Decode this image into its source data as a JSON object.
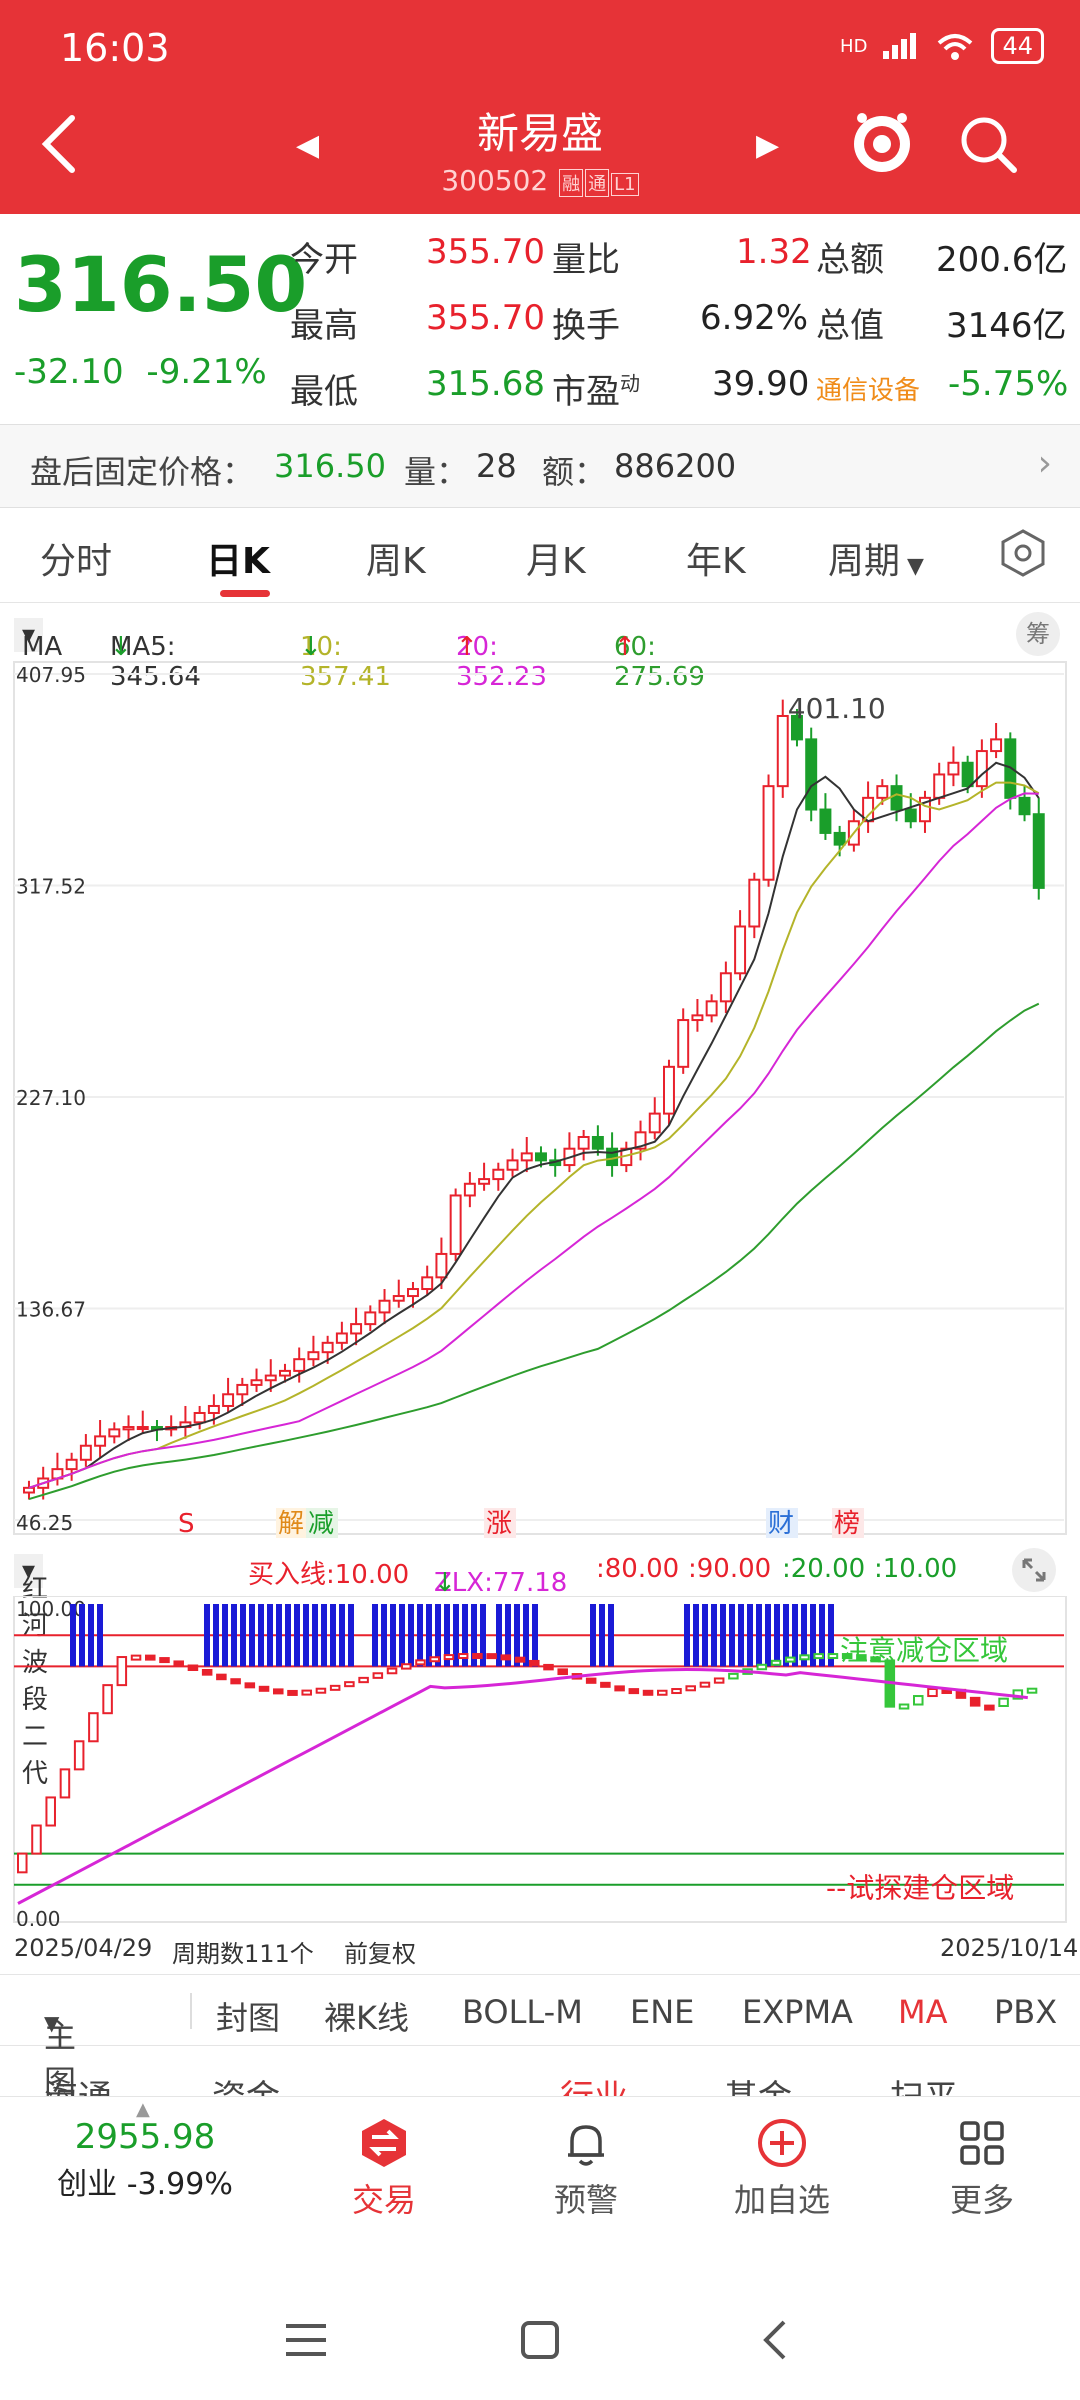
{
  "status": {
    "time": "16:03",
    "network": "HD",
    "battery": "44"
  },
  "header": {
    "stock_name": "新易盛",
    "stock_code": "300502",
    "badge1": "融",
    "badge2": "通",
    "badge3": "L1"
  },
  "quote": {
    "price": "316.50",
    "change": "-32.10",
    "change_pct": "-9.21%",
    "rows": [
      {
        "l1": "今开",
        "v1": "355.70",
        "l2": "量比",
        "v2": "1.32",
        "l3": "总额",
        "v3": "200.6亿"
      },
      {
        "l1": "最高",
        "v1": "355.70",
        "l2": "换手",
        "v2": "6.92%",
        "l3": "总值",
        "v3": "3146亿"
      },
      {
        "l1": "最低",
        "v1": "315.68",
        "l2": "市盈",
        "l2sup": "动",
        "v2": "39.90",
        "l3": "通信设备",
        "v3": "-5.75%"
      }
    ]
  },
  "after_hours": {
    "label": "盘后固定价格：",
    "price": "316.50",
    "vol_label": "量：",
    "vol": "28",
    "amt_label": "额：",
    "amt": "886200"
  },
  "tabs": [
    "分时",
    "日K",
    "周K",
    "月K",
    "年K",
    "周期"
  ],
  "ma_legend": {
    "select": "MA",
    "ma5": "MA5: 345.64",
    "ma10": "10: 357.41",
    "ma20": "20: 352.23",
    "ma60": "60: 275.69",
    "chou": "筹"
  },
  "price_axis": [
    "407.95",
    "317.52",
    "227.10",
    "136.67",
    "46.25"
  ],
  "peak_label": "401.10",
  "event_markers": [
    "S",
    "解",
    "减",
    "涨",
    "财",
    "榜"
  ],
  "indicator": {
    "name": "红河波段二代",
    "buy_label": "买入线:10.00",
    "zlx": "ZLX:77.18",
    "lv80": ":80.00",
    "lv90": ":90.00",
    "lv20": ":20.00",
    "lv10": ":10.00",
    "top_value": "100.00",
    "bottom_value": "0.00",
    "zone_top": "注意减仓区域",
    "zone_bottom": "--试探建仓区域"
  },
  "axis": {
    "start_date": "2025/04/29",
    "period_count": "周期数111个",
    "adjust": "前复权",
    "end_date": "2025/10/14"
  },
  "indicator_tabs": [
    "主图",
    "封图",
    "裸K线",
    "BOLL-M",
    "ENE",
    "EXPMA",
    "MA",
    "PBX"
  ],
  "news_strip": [
    "海通",
    "资金",
    "行业",
    "基金",
    "扫平"
  ],
  "bottom_nav": {
    "index_value": "2955.98",
    "index_label": "创业 -3.99%",
    "trade": "交易",
    "alert": "预警",
    "watch": "加自选",
    "more": "更多"
  },
  "colors": {
    "brand_red": "#e63337",
    "up_red": "#e8212c",
    "down_green": "#1a9e2a",
    "ma10": "#b4b42a",
    "ma20": "#d626d6",
    "ma60": "#2e9d2e"
  },
  "chart_data": {
    "type": "candlestick",
    "title": "",
    "xlabel": "",
    "ylabel": "",
    "x_range": [
      "2025/04/29",
      "2025/10/14"
    ],
    "ylim": [
      46.25,
      407.95
    ],
    "y_ticks": [
      407.95,
      317.52,
      227.1,
      136.67,
      46.25
    ],
    "marked_high": 401.1,
    "closes_approx": [
      60,
      64,
      68,
      72,
      78,
      82,
      85,
      86,
      86,
      85,
      86,
      88,
      92,
      95,
      100,
      104,
      106,
      108,
      110,
      115,
      118,
      122,
      126,
      130,
      135,
      140,
      142,
      145,
      150,
      160,
      185,
      190,
      192,
      196,
      200,
      203,
      200,
      198,
      205,
      210,
      205,
      198,
      205,
      212,
      220,
      240,
      260,
      262,
      268,
      280,
      300,
      320,
      360,
      390,
      380,
      350,
      340,
      335,
      345,
      355,
      360,
      350,
      345,
      355,
      365,
      370,
      360,
      375,
      380,
      355,
      348,
      316.5
    ],
    "ma_latest": {
      "MA5": 345.64,
      "MA10": 357.41,
      "MA20": 352.23,
      "MA60": 275.69
    }
  }
}
